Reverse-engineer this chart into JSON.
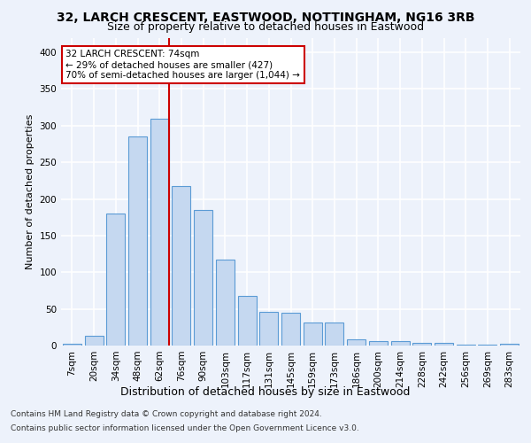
{
  "title1": "32, LARCH CRESCENT, EASTWOOD, NOTTINGHAM, NG16 3RB",
  "title2": "Size of property relative to detached houses in Eastwood",
  "xlabel": "Distribution of detached houses by size in Eastwood",
  "ylabel": "Number of detached properties",
  "categories": [
    "7sqm",
    "20sqm",
    "34sqm",
    "48sqm",
    "62sqm",
    "76sqm",
    "90sqm",
    "103sqm",
    "117sqm",
    "131sqm",
    "145sqm",
    "159sqm",
    "173sqm",
    "186sqm",
    "200sqm",
    "214sqm",
    "228sqm",
    "242sqm",
    "256sqm",
    "269sqm",
    "283sqm"
  ],
  "values": [
    2,
    13,
    180,
    285,
    310,
    218,
    185,
    117,
    68,
    46,
    45,
    31,
    31,
    8,
    6,
    6,
    4,
    4,
    1,
    1,
    2
  ],
  "bar_color": "#c5d8f0",
  "bar_edge_color": "#5b9bd5",
  "vline_color": "#cc0000",
  "vline_pos": 4.42,
  "annotation_text": "32 LARCH CRESCENT: 74sqm\n← 29% of detached houses are smaller (427)\n70% of semi-detached houses are larger (1,044) →",
  "annotation_box_color": "#ffffff",
  "annotation_box_edge": "#cc0000",
  "ylim": [
    0,
    420
  ],
  "yticks": [
    0,
    50,
    100,
    150,
    200,
    250,
    300,
    350,
    400
  ],
  "footer1": "Contains HM Land Registry data © Crown copyright and database right 2024.",
  "footer2": "Contains public sector information licensed under the Open Government Licence v3.0.",
  "bg_color": "#edf2fb",
  "plot_bg_color": "#edf2fb",
  "grid_color": "#ffffff",
  "title1_fontsize": 10,
  "title2_fontsize": 9,
  "ylabel_fontsize": 8,
  "xlabel_fontsize": 9,
  "tick_fontsize": 7.5,
  "annot_fontsize": 7.5,
  "footer_fontsize": 6.5
}
